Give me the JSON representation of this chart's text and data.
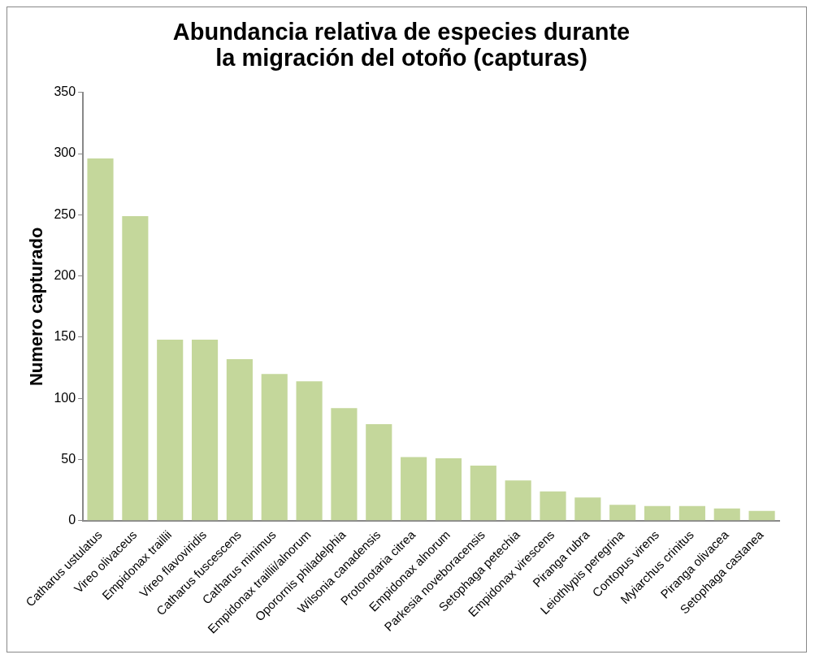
{
  "chart_data": {
    "type": "bar",
    "title": [
      "Abundancia relativa de especies durante",
      "la migración del otoño (capturas)"
    ],
    "ylabel": "Numero capturado",
    "categories": [
      "Catharus ustulatus",
      "Vireo olivaceus",
      "Empidonax traillii",
      "Vireo flavoviridis",
      "Catharus fuscescens",
      "Catharus minimus",
      "Empidonax traillii/alnorum",
      "Oporornis philadelphia",
      "Wilsonia canadensis",
      "Protonotaria citrea",
      "Empidonax alnorum",
      "Parkesia noveboracensis",
      "Setophaga petechia",
      "Empidonax virescens",
      "Piranga rubra",
      "Leiothlypis peregrina",
      "Contopus virens",
      "Myiarchus crinitus",
      "Piranga olivacea",
      "Setophaga castanea"
    ],
    "values": [
      296,
      249,
      148,
      148,
      132,
      120,
      114,
      92,
      79,
      52,
      51,
      45,
      33,
      24,
      19,
      13,
      12,
      12,
      10,
      8
    ],
    "color": "#c4d79b",
    "ylim": [
      0,
      350
    ],
    "yticks": [
      0,
      50,
      100,
      150,
      200,
      250,
      300,
      350
    ],
    "grid": false,
    "legend": false
  }
}
